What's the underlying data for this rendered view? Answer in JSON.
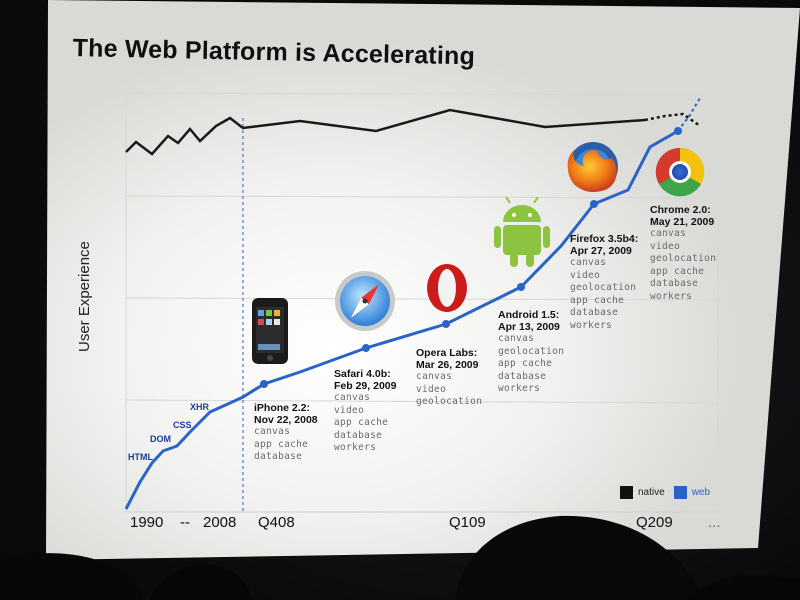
{
  "slide": {
    "title": "The Web Platform is Accelerating",
    "y_axis_label": "User Experience",
    "x_axis_labels": [
      "1990",
      "--",
      "2008",
      "Q408",
      "Q109",
      "Q209",
      "..."
    ],
    "timeline_labels": [
      "HTML",
      "DOM",
      "CSS",
      "XHR"
    ],
    "releases": [
      {
        "name": "iPhone 2.2:",
        "date": "Nov 22, 2008",
        "features": [
          "canvas",
          "app cache",
          "database"
        ],
        "icon": "iphone-icon"
      },
      {
        "name": "Safari 4.0b:",
        "date": "Feb 29, 2009",
        "features": [
          "canvas",
          "video",
          "app cache",
          "database",
          "workers"
        ],
        "icon": "safari-icon"
      },
      {
        "name": "Opera Labs:",
        "date": "Mar 26, 2009",
        "features": [
          "canvas",
          "video",
          "geolocation"
        ],
        "icon": "opera-icon"
      },
      {
        "name": "Android 1.5:",
        "date": "Apr 13, 2009",
        "features": [
          "canvas",
          "geolocation",
          "app cache",
          "database",
          "workers"
        ],
        "icon": "android-icon"
      },
      {
        "name": "Firefox 3.5b4:",
        "date": "Apr 27, 2009",
        "features": [
          "canvas",
          "video",
          "geolocation",
          "app cache",
          "database",
          "workers"
        ],
        "icon": "firefox-icon"
      },
      {
        "name": "Chrome 2.0:",
        "date": "May 21, 2009",
        "features": [
          "canvas",
          "video",
          "geolocation",
          "app cache",
          "database",
          "workers"
        ],
        "icon": "chrome-icon"
      }
    ],
    "legend": [
      {
        "label": "native",
        "color": "#111111"
      },
      {
        "label": "web",
        "color": "#2a63c8"
      }
    ]
  },
  "colors": {
    "slide_background": "#f4f4f2",
    "web_line": "#2a63c8",
    "native_line": "#1a1a1a",
    "photo_background": "#0b0b0c"
  }
}
